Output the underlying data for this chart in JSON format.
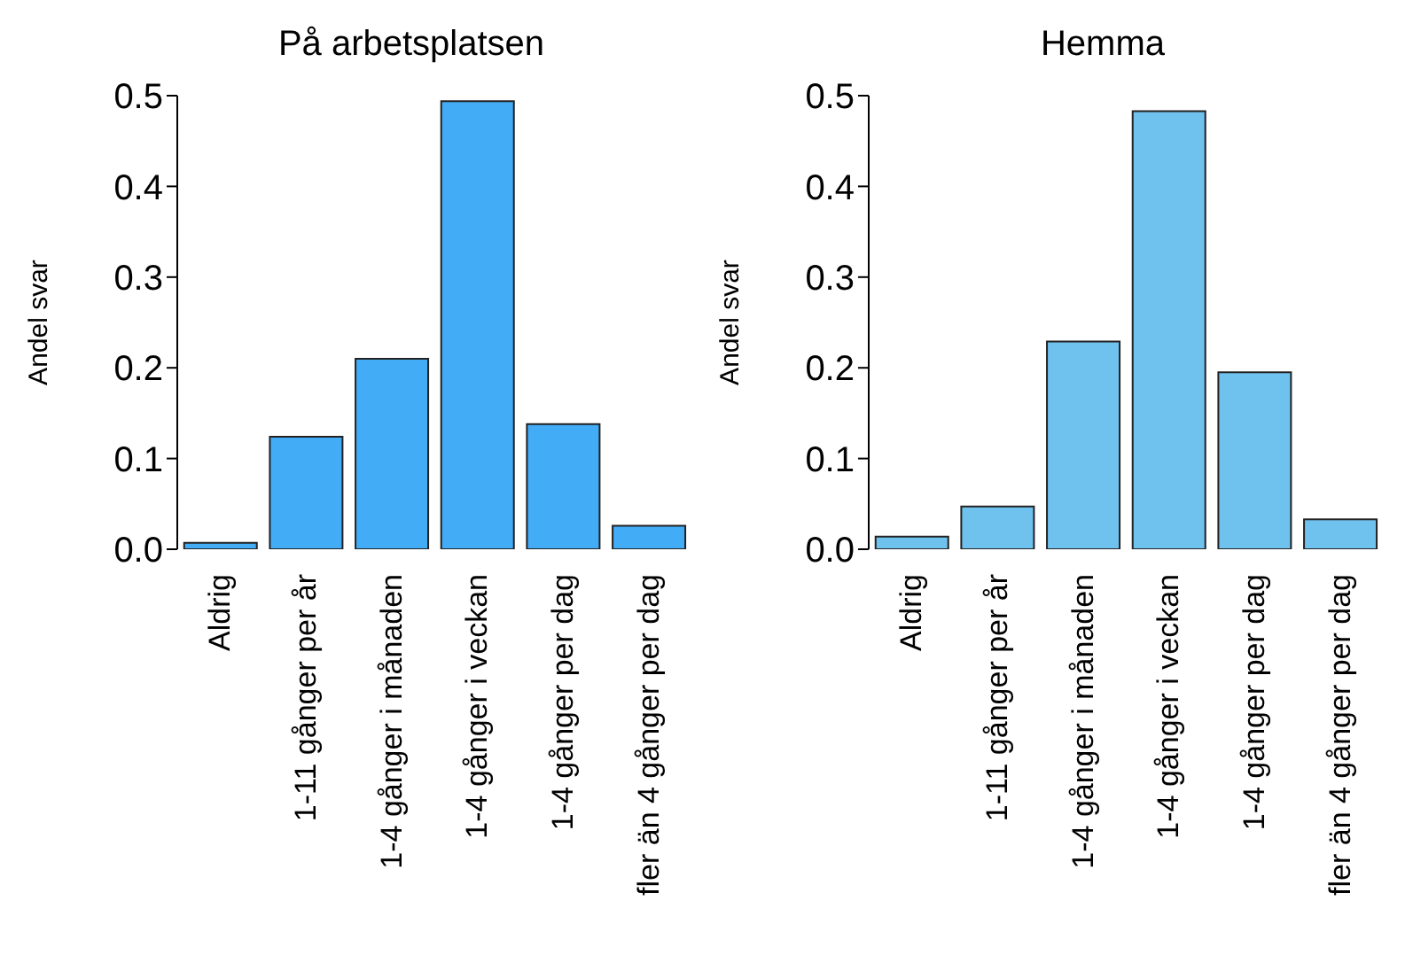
{
  "chart_data": [
    {
      "type": "bar",
      "title": "På arbetsplatsen",
      "ylabel": "Andel svar",
      "categories": [
        "Aldrig",
        "1-11 gånger per år",
        "1-4 gånger i månaden",
        "1-4 gånger i veckan",
        "1-4 gånger per dag",
        "fler än 4 gånger per dag"
      ],
      "values": [
        0.007,
        0.124,
        0.21,
        0.494,
        0.138,
        0.026
      ],
      "color": "#42acf7",
      "ylim": [
        0,
        0.5
      ],
      "yticks": [
        {
          "value": 0,
          "label": "0.0"
        },
        0.1,
        0.2,
        0.3,
        0.4,
        0.5
      ],
      "grid": false
    },
    {
      "type": "bar",
      "title": "Hemma",
      "ylabel": "Andel svar",
      "categories": [
        "Aldrig",
        "1-11 gånger per år",
        "1-4 gånger i månaden",
        "1-4 gånger i veckan",
        "1-4 gånger per dag",
        "fler än 4 gånger per dag"
      ],
      "values": [
        0.014,
        0.047,
        0.229,
        0.483,
        0.195,
        0.033
      ],
      "color": "#6fc1ee",
      "ylim": [
        0,
        0.5
      ],
      "yticks": [
        {
          "value": 0,
          "label": "0.0"
        },
        0.1,
        0.2,
        0.3,
        0.4,
        0.5
      ],
      "grid": false
    }
  ]
}
